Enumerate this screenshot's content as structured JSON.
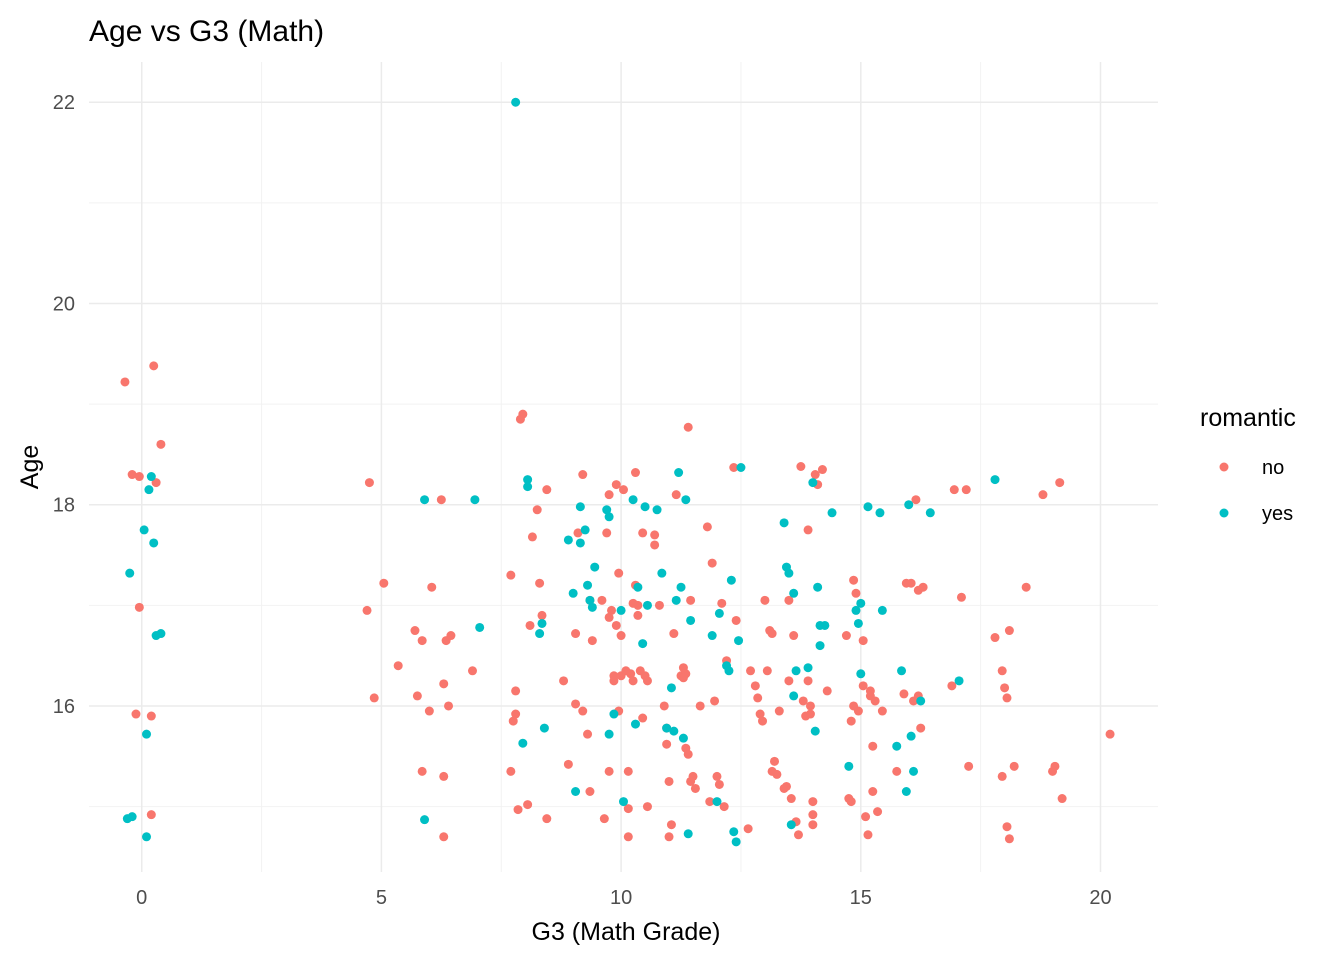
{
  "chart_data": {
    "type": "scatter",
    "title": "Age vs G3 (Math)",
    "xlabel": "G3 (Math Grade)",
    "ylabel": "Age",
    "xlim": [
      -1.1,
      21.2
    ],
    "ylim": [
      14.35,
      22.4
    ],
    "x_ticks": [
      0,
      5,
      10,
      15,
      20
    ],
    "y_ticks": [
      16,
      18,
      20,
      22
    ],
    "grid": true,
    "legend": {
      "title": "romantic",
      "position": "right"
    },
    "series": [
      {
        "name": "no",
        "color": "#F8766D",
        "points": [
          [
            -0.35,
            19.22
          ],
          [
            0.25,
            19.38
          ],
          [
            0.4,
            18.6
          ],
          [
            -0.2,
            18.3
          ],
          [
            -0.05,
            18.28
          ],
          [
            0.3,
            18.22
          ],
          [
            -0.05,
            16.98
          ],
          [
            -0.12,
            15.92
          ],
          [
            0.2,
            15.9
          ],
          [
            0.2,
            14.92
          ],
          [
            4.75,
            18.22
          ],
          [
            4.7,
            16.95
          ],
          [
            5.05,
            17.22
          ],
          [
            4.85,
            16.08
          ],
          [
            5.35,
            16.4
          ],
          [
            5.7,
            16.75
          ],
          [
            5.75,
            16.1
          ],
          [
            5.85,
            16.65
          ],
          [
            5.85,
            15.35
          ],
          [
            6.05,
            17.18
          ],
          [
            6.0,
            15.95
          ],
          [
            6.25,
            18.05
          ],
          [
            6.3,
            16.22
          ],
          [
            6.3,
            15.3
          ],
          [
            6.3,
            14.7
          ],
          [
            6.35,
            16.65
          ],
          [
            6.4,
            16.0
          ],
          [
            6.45,
            16.7
          ],
          [
            6.9,
            16.35
          ],
          [
            7.7,
            17.3
          ],
          [
            7.7,
            15.35
          ],
          [
            7.8,
            16.15
          ],
          [
            7.75,
            15.85
          ],
          [
            7.8,
            15.92
          ],
          [
            7.85,
            14.97
          ],
          [
            8.05,
            15.02
          ],
          [
            7.95,
            18.9
          ],
          [
            7.9,
            18.85
          ],
          [
            8.15,
            17.68
          ],
          [
            8.25,
            17.95
          ],
          [
            8.3,
            17.22
          ],
          [
            8.1,
            16.8
          ],
          [
            8.35,
            16.9
          ],
          [
            8.45,
            18.15
          ],
          [
            8.45,
            14.88
          ],
          [
            8.8,
            16.25
          ],
          [
            8.9,
            15.42
          ],
          [
            9.05,
            16.72
          ],
          [
            9.05,
            16.02
          ],
          [
            9.1,
            17.72
          ],
          [
            9.2,
            18.3
          ],
          [
            9.2,
            15.95
          ],
          [
            9.35,
            17.05
          ],
          [
            9.4,
            16.65
          ],
          [
            9.3,
            15.72
          ],
          [
            9.35,
            15.15
          ],
          [
            9.6,
            17.05
          ],
          [
            9.7,
            17.72
          ],
          [
            9.75,
            16.88
          ],
          [
            9.8,
            16.95
          ],
          [
            9.75,
            18.1
          ],
          [
            9.65,
            14.88
          ],
          [
            9.75,
            15.35
          ],
          [
            9.85,
            16.3
          ],
          [
            9.85,
            16.25
          ],
          [
            9.9,
            16.8
          ],
          [
            9.95,
            17.32
          ],
          [
            9.9,
            18.2
          ],
          [
            10.0,
            16.3
          ],
          [
            10.05,
            18.15
          ],
          [
            9.95,
            15.95
          ],
          [
            10.0,
            16.7
          ],
          [
            10.1,
            16.35
          ],
          [
            10.15,
            15.35
          ],
          [
            10.15,
            14.98
          ],
          [
            10.15,
            14.7
          ],
          [
            10.2,
            16.32
          ],
          [
            10.25,
            17.02
          ],
          [
            10.25,
            16.25
          ],
          [
            10.3,
            17.2
          ],
          [
            10.3,
            18.32
          ],
          [
            10.35,
            16.9
          ],
          [
            10.35,
            17.0
          ],
          [
            10.4,
            16.35
          ],
          [
            10.45,
            15.88
          ],
          [
            10.45,
            17.72
          ],
          [
            10.5,
            16.3
          ],
          [
            10.55,
            16.25
          ],
          [
            10.55,
            15.0
          ],
          [
            10.7,
            17.7
          ],
          [
            10.7,
            17.6
          ],
          [
            10.8,
            17.0
          ],
          [
            10.9,
            16.0
          ],
          [
            10.95,
            15.78
          ],
          [
            10.95,
            15.62
          ],
          [
            11.0,
            15.25
          ],
          [
            11.05,
            14.82
          ],
          [
            11.0,
            14.7
          ],
          [
            11.1,
            16.72
          ],
          [
            11.15,
            18.1
          ],
          [
            11.25,
            16.3
          ],
          [
            11.3,
            16.38
          ],
          [
            11.35,
            16.32
          ],
          [
            11.3,
            16.28
          ],
          [
            11.35,
            15.58
          ],
          [
            11.4,
            15.52
          ],
          [
            11.45,
            15.25
          ],
          [
            11.4,
            18.77
          ],
          [
            11.45,
            17.05
          ],
          [
            11.5,
            15.3
          ],
          [
            11.55,
            15.18
          ],
          [
            11.65,
            16.0
          ],
          [
            11.8,
            17.78
          ],
          [
            11.85,
            15.05
          ],
          [
            11.9,
            17.42
          ],
          [
            11.95,
            16.05
          ],
          [
            12.0,
            15.3
          ],
          [
            12.05,
            15.22
          ],
          [
            12.15,
            15.0
          ],
          [
            12.1,
            17.02
          ],
          [
            12.2,
            16.45
          ],
          [
            12.35,
            18.37
          ],
          [
            12.4,
            16.85
          ],
          [
            12.65,
            14.78
          ],
          [
            12.7,
            16.35
          ],
          [
            12.8,
            16.2
          ],
          [
            12.85,
            16.08
          ],
          [
            12.9,
            15.92
          ],
          [
            12.95,
            15.85
          ],
          [
            13.0,
            17.05
          ],
          [
            13.05,
            16.35
          ],
          [
            13.1,
            16.75
          ],
          [
            13.15,
            16.72
          ],
          [
            13.15,
            15.35
          ],
          [
            13.2,
            15.45
          ],
          [
            13.25,
            15.32
          ],
          [
            13.3,
            15.95
          ],
          [
            13.4,
            15.18
          ],
          [
            13.45,
            15.2
          ],
          [
            13.5,
            16.25
          ],
          [
            13.5,
            17.05
          ],
          [
            13.55,
            15.08
          ],
          [
            13.6,
            16.7
          ],
          [
            13.65,
            14.85
          ],
          [
            13.7,
            14.72
          ],
          [
            13.75,
            18.38
          ],
          [
            13.8,
            16.05
          ],
          [
            13.85,
            15.9
          ],
          [
            13.9,
            17.75
          ],
          [
            13.95,
            16.0
          ],
          [
            13.9,
            16.25
          ],
          [
            13.95,
            15.92
          ],
          [
            14.0,
            15.05
          ],
          [
            14.0,
            14.92
          ],
          [
            14.0,
            14.82
          ],
          [
            14.05,
            18.3
          ],
          [
            14.1,
            18.2
          ],
          [
            14.2,
            18.35
          ],
          [
            14.3,
            16.15
          ],
          [
            14.7,
            16.7
          ],
          [
            14.75,
            15.08
          ],
          [
            14.8,
            15.05
          ],
          [
            14.85,
            17.25
          ],
          [
            14.85,
            16.0
          ],
          [
            14.9,
            17.12
          ],
          [
            14.8,
            15.85
          ],
          [
            14.95,
            15.95
          ],
          [
            15.05,
            16.65
          ],
          [
            15.05,
            16.2
          ],
          [
            15.1,
            14.9
          ],
          [
            15.15,
            14.72
          ],
          [
            15.2,
            16.1
          ],
          [
            15.2,
            16.15
          ],
          [
            15.25,
            15.6
          ],
          [
            15.25,
            15.15
          ],
          [
            15.3,
            16.05
          ],
          [
            15.35,
            14.95
          ],
          [
            15.45,
            15.95
          ],
          [
            15.75,
            15.35
          ],
          [
            15.9,
            16.12
          ],
          [
            15.95,
            17.22
          ],
          [
            16.05,
            17.22
          ],
          [
            16.1,
            16.05
          ],
          [
            16.15,
            18.05
          ],
          [
            16.2,
            16.1
          ],
          [
            16.25,
            15.78
          ],
          [
            16.3,
            17.18
          ],
          [
            16.2,
            17.15
          ],
          [
            16.9,
            16.2
          ],
          [
            16.95,
            18.15
          ],
          [
            17.1,
            17.08
          ],
          [
            17.2,
            18.15
          ],
          [
            17.25,
            15.4
          ],
          [
            17.8,
            16.68
          ],
          [
            17.95,
            16.35
          ],
          [
            18.0,
            16.18
          ],
          [
            18.05,
            16.08
          ],
          [
            17.95,
            15.3
          ],
          [
            18.05,
            14.8
          ],
          [
            18.1,
            14.68
          ],
          [
            18.1,
            16.75
          ],
          [
            18.2,
            15.4
          ],
          [
            18.45,
            17.18
          ],
          [
            18.8,
            18.1
          ],
          [
            19.0,
            15.35
          ],
          [
            19.05,
            15.4
          ],
          [
            19.15,
            18.22
          ],
          [
            19.2,
            15.08
          ],
          [
            20.2,
            15.72
          ]
        ]
      },
      {
        "name": "yes",
        "color": "#00BFC4",
        "points": [
          [
            -0.3,
            14.88
          ],
          [
            -0.2,
            14.9
          ],
          [
            -0.25,
            17.32
          ],
          [
            0.05,
            17.75
          ],
          [
            0.1,
            15.72
          ],
          [
            0.1,
            14.7
          ],
          [
            0.15,
            18.15
          ],
          [
            0.2,
            18.28
          ],
          [
            0.25,
            17.62
          ],
          [
            0.3,
            16.7
          ],
          [
            0.4,
            16.72
          ],
          [
            5.9,
            18.05
          ],
          [
            5.9,
            14.87
          ],
          [
            6.95,
            18.05
          ],
          [
            7.05,
            16.78
          ],
          [
            7.8,
            22.0
          ],
          [
            7.95,
            15.63
          ],
          [
            8.05,
            18.25
          ],
          [
            8.05,
            18.18
          ],
          [
            8.3,
            16.72
          ],
          [
            8.35,
            16.82
          ],
          [
            8.4,
            15.78
          ],
          [
            8.9,
            17.65
          ],
          [
            9.0,
            17.12
          ],
          [
            9.05,
            15.15
          ],
          [
            9.15,
            17.62
          ],
          [
            9.15,
            17.98
          ],
          [
            9.25,
            17.75
          ],
          [
            9.3,
            17.2
          ],
          [
            9.35,
            17.05
          ],
          [
            9.4,
            16.98
          ],
          [
            9.45,
            17.38
          ],
          [
            9.7,
            17.95
          ],
          [
            9.75,
            17.88
          ],
          [
            9.75,
            15.72
          ],
          [
            9.85,
            15.92
          ],
          [
            10.0,
            16.95
          ],
          [
            10.05,
            15.05
          ],
          [
            10.25,
            18.05
          ],
          [
            10.3,
            15.82
          ],
          [
            10.35,
            17.18
          ],
          [
            10.45,
            16.62
          ],
          [
            10.5,
            17.98
          ],
          [
            10.55,
            17.0
          ],
          [
            10.75,
            17.95
          ],
          [
            10.85,
            17.32
          ],
          [
            10.95,
            15.78
          ],
          [
            11.05,
            16.18
          ],
          [
            11.1,
            15.75
          ],
          [
            11.15,
            17.05
          ],
          [
            11.2,
            18.32
          ],
          [
            11.25,
            17.18
          ],
          [
            11.3,
            15.68
          ],
          [
            11.35,
            18.05
          ],
          [
            11.45,
            16.85
          ],
          [
            11.4,
            14.73
          ],
          [
            11.9,
            16.7
          ],
          [
            12.0,
            15.05
          ],
          [
            12.05,
            16.92
          ],
          [
            12.2,
            16.4
          ],
          [
            12.25,
            16.35
          ],
          [
            12.3,
            17.25
          ],
          [
            12.35,
            14.75
          ],
          [
            12.4,
            14.65
          ],
          [
            12.45,
            16.65
          ],
          [
            12.5,
            18.37
          ],
          [
            13.4,
            17.82
          ],
          [
            13.45,
            17.38
          ],
          [
            13.5,
            17.32
          ],
          [
            13.6,
            16.1
          ],
          [
            13.65,
            16.35
          ],
          [
            13.6,
            17.12
          ],
          [
            13.55,
            14.82
          ],
          [
            13.9,
            16.38
          ],
          [
            14.0,
            18.22
          ],
          [
            14.05,
            15.75
          ],
          [
            14.1,
            17.18
          ],
          [
            14.15,
            16.8
          ],
          [
            14.15,
            16.6
          ],
          [
            14.25,
            16.8
          ],
          [
            14.4,
            17.92
          ],
          [
            14.75,
            15.4
          ],
          [
            14.9,
            16.95
          ],
          [
            14.95,
            16.82
          ],
          [
            15.0,
            17.02
          ],
          [
            15.0,
            16.32
          ],
          [
            15.15,
            17.98
          ],
          [
            15.4,
            17.92
          ],
          [
            15.45,
            16.95
          ],
          [
            15.75,
            15.6
          ],
          [
            15.85,
            16.35
          ],
          [
            15.95,
            15.15
          ],
          [
            16.0,
            18.0
          ],
          [
            16.05,
            15.7
          ],
          [
            16.1,
            15.35
          ],
          [
            16.25,
            16.05
          ],
          [
            16.45,
            17.92
          ],
          [
            17.05,
            16.25
          ],
          [
            17.8,
            18.25
          ]
        ]
      }
    ]
  }
}
